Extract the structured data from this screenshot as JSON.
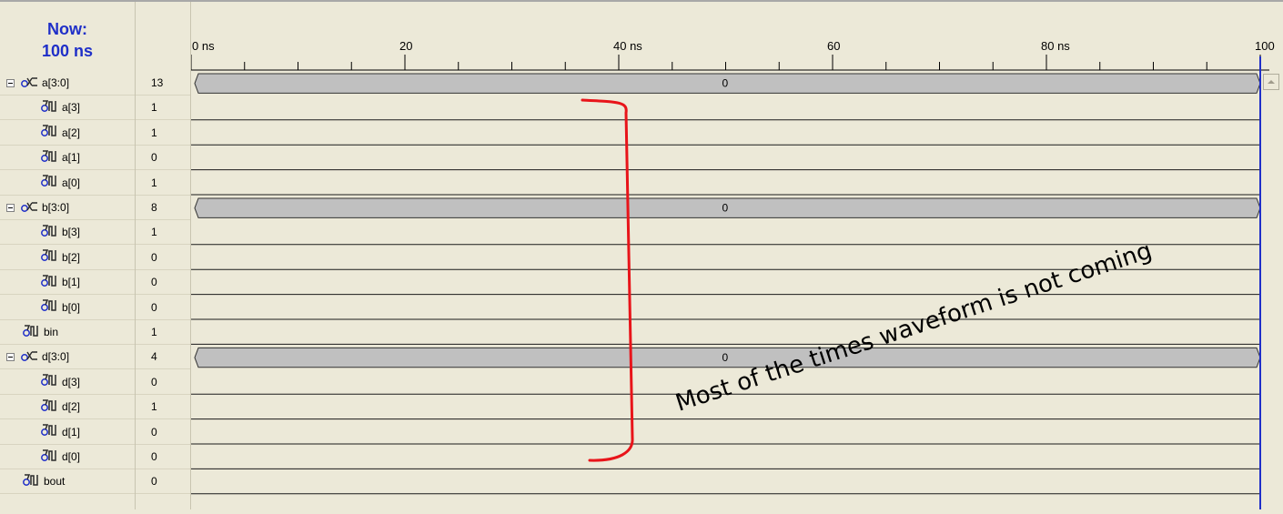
{
  "now": {
    "line1": "Now:",
    "line2": "100 ns"
  },
  "timeline": {
    "ticks": [
      {
        "label": "0 ns",
        "t": 0
      },
      {
        "label": "20",
        "t": 20
      },
      {
        "label": "40 ns",
        "t": 40
      },
      {
        "label": "60",
        "t": 60
      },
      {
        "label": "80 ns",
        "t": 80
      },
      {
        "label": "100",
        "t": 100
      }
    ],
    "end_ns": 100,
    "minor_step_ns": 5
  },
  "signals": [
    {
      "name": "a[3:0]",
      "value": "13",
      "kind": "bus",
      "level": 0,
      "wave_value": "0"
    },
    {
      "name": "a[3]",
      "value": "1",
      "kind": "bit",
      "level": 1
    },
    {
      "name": "a[2]",
      "value": "1",
      "kind": "bit",
      "level": 1
    },
    {
      "name": "a[1]",
      "value": "0",
      "kind": "bit",
      "level": 1
    },
    {
      "name": "a[0]",
      "value": "1",
      "kind": "bit",
      "level": 1
    },
    {
      "name": "b[3:0]",
      "value": "8",
      "kind": "bus",
      "level": 0,
      "wave_value": "0"
    },
    {
      "name": "b[3]",
      "value": "1",
      "kind": "bit",
      "level": 1
    },
    {
      "name": "b[2]",
      "value": "0",
      "kind": "bit",
      "level": 1
    },
    {
      "name": "b[1]",
      "value": "0",
      "kind": "bit",
      "level": 1
    },
    {
      "name": "b[0]",
      "value": "0",
      "kind": "bit",
      "level": 1
    },
    {
      "name": "bin",
      "value": "1",
      "kind": "bit",
      "level": 0
    },
    {
      "name": "d[3:0]",
      "value": "4",
      "kind": "bus",
      "level": 0,
      "wave_value": "0"
    },
    {
      "name": "d[3]",
      "value": "0",
      "kind": "bit",
      "level": 1
    },
    {
      "name": "d[2]",
      "value": "1",
      "kind": "bit",
      "level": 1
    },
    {
      "name": "d[1]",
      "value": "0",
      "kind": "bit",
      "level": 1
    },
    {
      "name": "d[0]",
      "value": "0",
      "kind": "bit",
      "level": 1
    },
    {
      "name": "bout",
      "value": "0",
      "kind": "bit",
      "level": 0
    }
  ],
  "annotation": {
    "text": "Most of the times waveform is not coming",
    "color": "#e8141a"
  },
  "colors": {
    "bus_fill": "#c0c0c0",
    "cursor": "#1f2fc8",
    "now_text": "#1f2fc8"
  }
}
